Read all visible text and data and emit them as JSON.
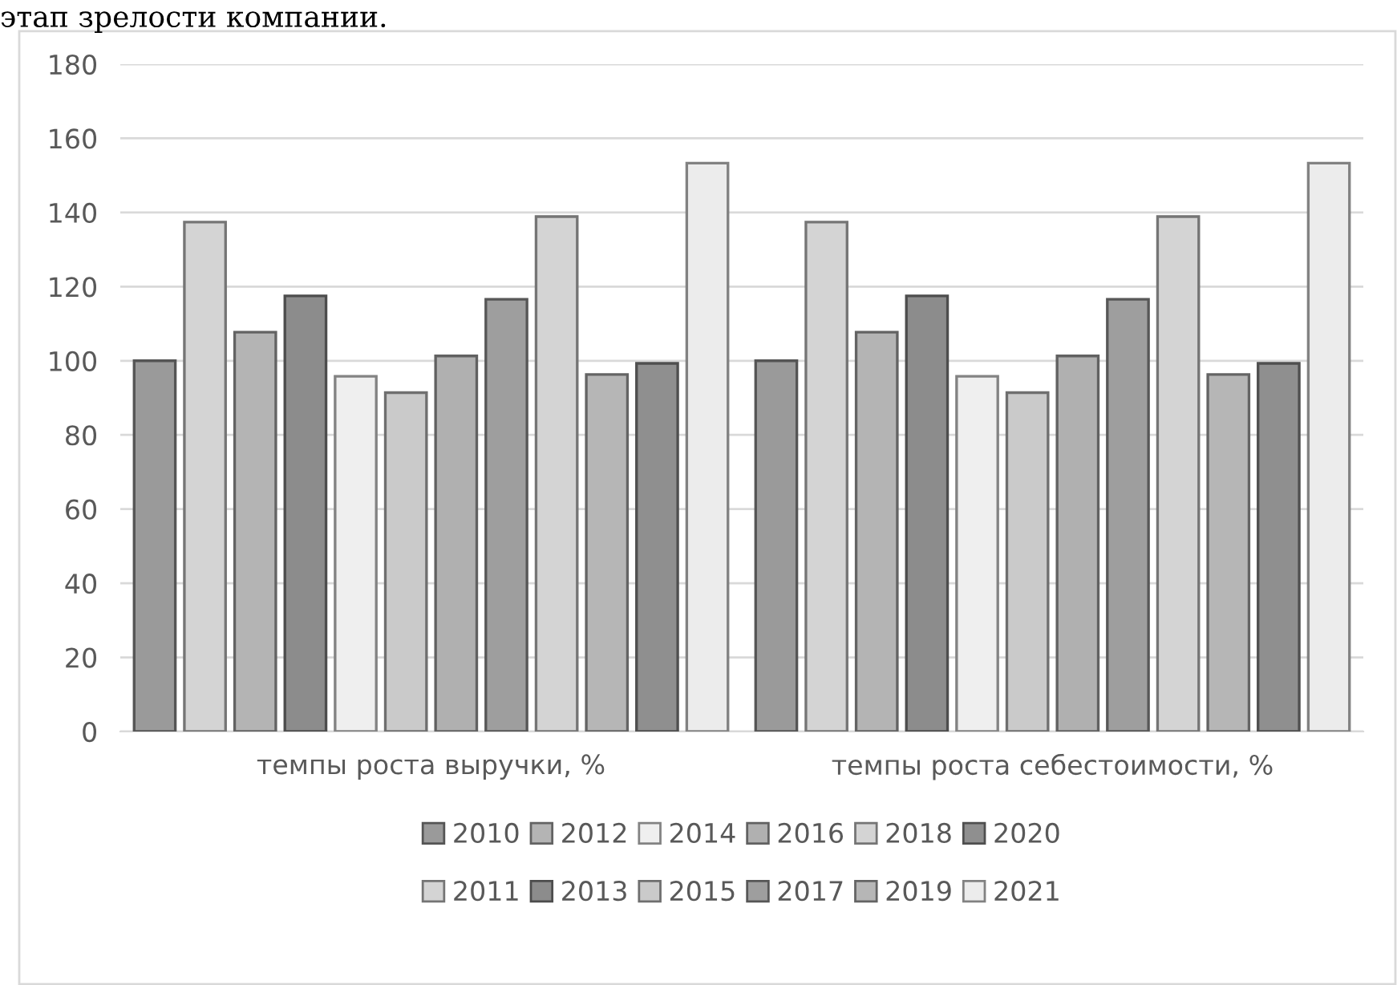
{
  "chart_data": {
    "type": "bar",
    "annotations": [
      "этап зрелости компании."
    ],
    "categories": [
      "темпы роста выручки, %",
      "темпы роста себестоимости, %"
    ],
    "series": [
      {
        "name": "2010",
        "color": "#9a9a9a",
        "values": [
          100,
          100
        ]
      },
      {
        "name": "2011",
        "color": "#d4d4d4",
        "values": [
          137.4,
          137.4
        ]
      },
      {
        "name": "2012",
        "color": "#b4b4b4",
        "values": [
          107.7,
          107.7
        ]
      },
      {
        "name": "2013",
        "color": "#8c8c8c",
        "values": [
          117.5,
          117.5
        ]
      },
      {
        "name": "2014",
        "color": "#efefef",
        "values": [
          95.8,
          95.8
        ]
      },
      {
        "name": "2015",
        "color": "#cacaca",
        "values": [
          91.4,
          91.4
        ]
      },
      {
        "name": "2016",
        "color": "#b0b0b0",
        "values": [
          101.3,
          101.3
        ]
      },
      {
        "name": "2017",
        "color": "#9e9e9e",
        "values": [
          116.6,
          116.6
        ]
      },
      {
        "name": "2018",
        "color": "#d4d4d4",
        "values": [
          138.9,
          138.9
        ]
      },
      {
        "name": "2019",
        "color": "#b6b6b6",
        "values": [
          96.3,
          96.3
        ]
      },
      {
        "name": "2020",
        "color": "#8f8f8f",
        "values": [
          99.3,
          99.3
        ]
      },
      {
        "name": "2021",
        "color": "#ececec",
        "values": [
          153.3,
          153.3
        ]
      }
    ],
    "ylim": [
      0,
      180
    ],
    "yticks": [
      0,
      20,
      40,
      60,
      80,
      100,
      120,
      140,
      160,
      180
    ],
    "grid": "y",
    "legend": "bottom"
  }
}
